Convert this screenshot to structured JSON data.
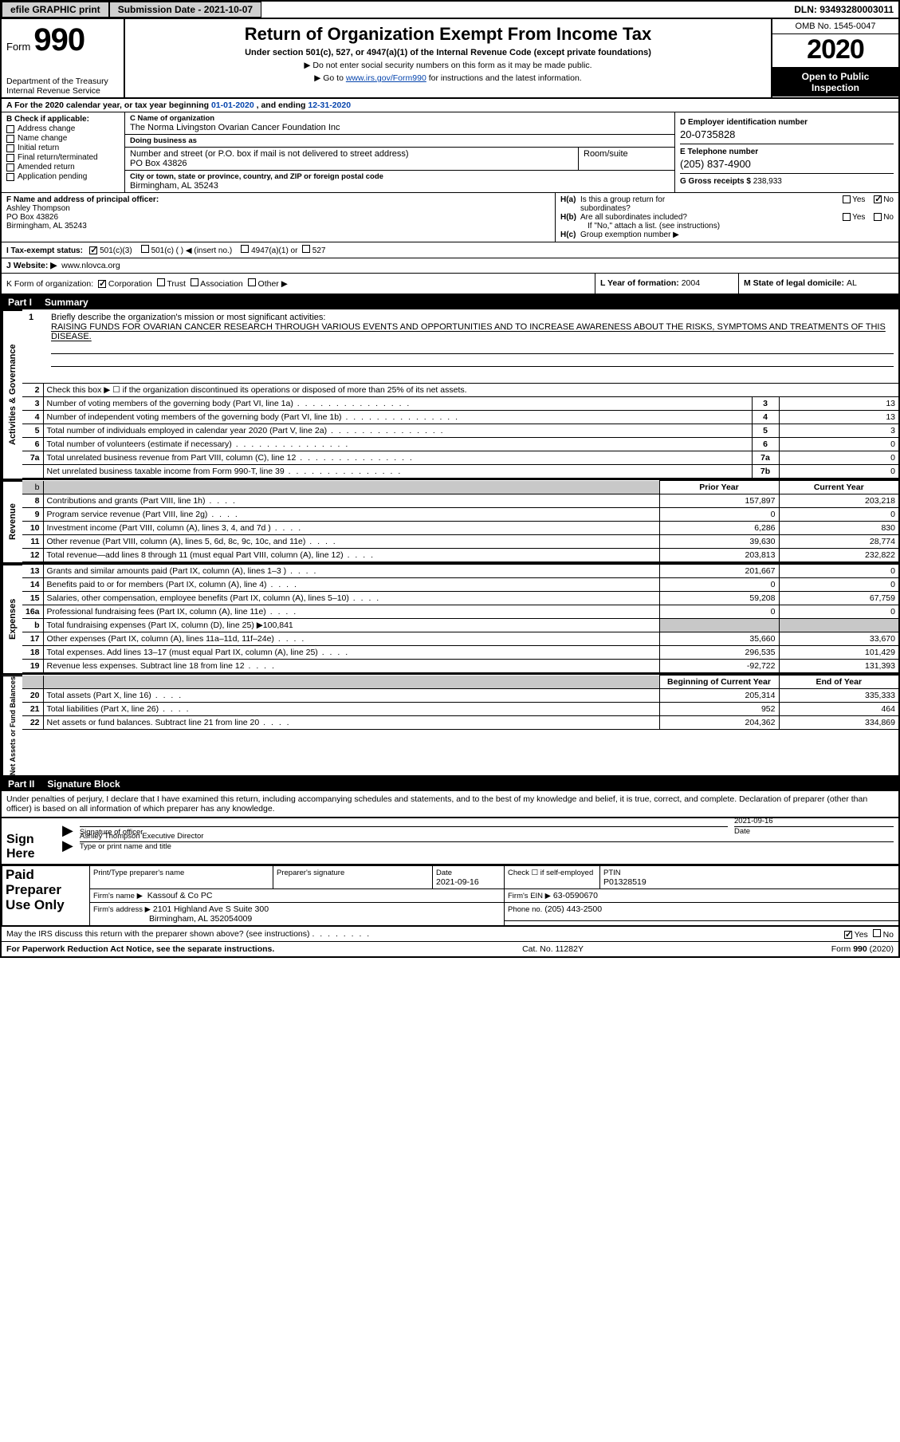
{
  "colors": {
    "ink": "#000000",
    "bg": "#ffffff",
    "link": "#0645ad",
    "shade": "#c8c8c8",
    "btn_bg": "#d0d0d0"
  },
  "topbar": {
    "efile": "efile GRAPHIC print",
    "submission_label": "Submission Date - 2021-10-07",
    "dln": "DLN: 93493280003011"
  },
  "header": {
    "form_word": "Form",
    "form_num": "990",
    "dept": "Department of the Treasury\nInternal Revenue Service",
    "title": "Return of Organization Exempt From Income Tax",
    "subtitle": "Under section 501(c), 527, or 4947(a)(1) of the Internal Revenue Code (except private foundations)",
    "note1": "▶ Do not enter social security numbers on this form as it may be made public.",
    "note2_pre": "▶ Go to ",
    "note2_link": "www.irs.gov/Form990",
    "note2_post": " for instructions and the latest information.",
    "omb": "OMB No. 1545-0047",
    "year": "2020",
    "open1": "Open to Public",
    "open2": "Inspection"
  },
  "line_a": {
    "text_pre": "A For the 2020 calendar year, or tax year beginning ",
    "begin": "01-01-2020",
    "mid": "   , and ending ",
    "end": "12-31-2020"
  },
  "col_b": {
    "header": "B Check if applicable:",
    "items": [
      "Address change",
      "Name change",
      "Initial return",
      "Final return/terminated",
      "Amended return",
      "Application pending"
    ]
  },
  "col_c": {
    "name_lbl": "C Name of organization",
    "name": "The Norma Livingston Ovarian Cancer Foundation Inc",
    "dba_lbl": "Doing business as",
    "dba": "",
    "addr_lbl": "Number and street (or P.O. box if mail is not delivered to street address)",
    "room_lbl": "Room/suite",
    "addr": "PO Box 43826",
    "city_lbl": "City or town, state or province, country, and ZIP or foreign postal code",
    "city": "Birmingham, AL  35243"
  },
  "col_d": {
    "d_lbl": "D Employer identification number",
    "d_val": "20-0735828",
    "e_lbl": "E Telephone number",
    "e_val": "(205) 837-4900",
    "g_lbl": "G Gross receipts $ ",
    "g_val": "238,933"
  },
  "f": {
    "lbl": "F  Name and address of principal officer:",
    "name": "Ashley Thompson",
    "addr1": "PO Box 43826",
    "addr2": "Birmingham, AL  35243"
  },
  "h": {
    "a_lbl": "H(a)  Is this a group return for subordinates?",
    "b_lbl": "H(b)  Are all subordinates included?",
    "b_note": "If \"No,\" attach a list. (see instructions)",
    "c_lbl": "H(c)  Group exemption number ▶"
  },
  "i": {
    "lbl": "I  Tax-exempt status:",
    "opts": [
      "501(c)(3)",
      "501(c) (   ) ◀ (insert no.)",
      "4947(a)(1) or",
      "527"
    ]
  },
  "j": {
    "lbl": "J  Website: ▶",
    "val": "www.nlovca.org"
  },
  "k": {
    "lbl": "K Form of organization:",
    "opts": [
      "Corporation",
      "Trust",
      "Association",
      "Other ▶"
    ]
  },
  "l": {
    "lbl": "L Year of formation: ",
    "val": "2004"
  },
  "m": {
    "lbl": "M State of legal domicile: ",
    "val": "AL"
  },
  "part1": {
    "num": "Part I",
    "title": "Summary"
  },
  "summary": {
    "side_labels": [
      "Activities & Governance",
      "Revenue",
      "Expenses",
      "Net Assets or Fund Balances"
    ],
    "q1_num": "1",
    "q1_text": "Briefly describe the organization's mission or most significant activities:",
    "mission": "RAISING FUNDS FOR OVARIAN CANCER RESEARCH THROUGH VARIOUS EVENTS AND OPPORTUNITIES AND TO INCREASE AWARENESS ABOUT THE RISKS, SYMPTOMS AND TREATMENTS OF THIS DISEASE.",
    "q2_text": "Check this box ▶ ☐  if the organization discontinued its operations or disposed of more than 25% of its net assets.",
    "lines_ag": [
      {
        "n": "3",
        "desc": "Number of voting members of the governing body (Part VI, line 1a)",
        "box": "3",
        "val": "13"
      },
      {
        "n": "4",
        "desc": "Number of independent voting members of the governing body (Part VI, line 1b)",
        "box": "4",
        "val": "13"
      },
      {
        "n": "5",
        "desc": "Total number of individuals employed in calendar year 2020 (Part V, line 2a)",
        "box": "5",
        "val": "3"
      },
      {
        "n": "6",
        "desc": "Total number of volunteers (estimate if necessary)",
        "box": "6",
        "val": "0"
      },
      {
        "n": "7a",
        "desc": "Total unrelated business revenue from Part VIII, column (C), line 12",
        "box": "7a",
        "val": "0"
      },
      {
        "n": "",
        "desc": "Net unrelated business taxable income from Form 990-T, line 39",
        "box": "7b",
        "val": "0"
      }
    ],
    "col_hdrs": {
      "prior": "Prior Year",
      "current": "Current Year"
    },
    "rev_rows": [
      {
        "n": "8",
        "desc": "Contributions and grants (Part VIII, line 1h)",
        "py": "157,897",
        "cy": "203,218"
      },
      {
        "n": "9",
        "desc": "Program service revenue (Part VIII, line 2g)",
        "py": "0",
        "cy": "0"
      },
      {
        "n": "10",
        "desc": "Investment income (Part VIII, column (A), lines 3, 4, and 7d )",
        "py": "6,286",
        "cy": "830"
      },
      {
        "n": "11",
        "desc": "Other revenue (Part VIII, column (A), lines 5, 6d, 8c, 9c, 10c, and 11e)",
        "py": "39,630",
        "cy": "28,774"
      },
      {
        "n": "12",
        "desc": "Total revenue—add lines 8 through 11 (must equal Part VIII, column (A), line 12)",
        "py": "203,813",
        "cy": "232,822"
      }
    ],
    "exp_rows": [
      {
        "n": "13",
        "desc": "Grants and similar amounts paid (Part IX, column (A), lines 1–3 )",
        "py": "201,667",
        "cy": "0"
      },
      {
        "n": "14",
        "desc": "Benefits paid to or for members (Part IX, column (A), line 4)",
        "py": "0",
        "cy": "0"
      },
      {
        "n": "15",
        "desc": "Salaries, other compensation, employee benefits (Part IX, column (A), lines 5–10)",
        "py": "59,208",
        "cy": "67,759"
      },
      {
        "n": "16a",
        "desc": "Professional fundraising fees (Part IX, column (A), line 11e)",
        "py": "0",
        "cy": "0"
      },
      {
        "n": "b",
        "desc": "Total fundraising expenses (Part IX, column (D), line 25) ▶100,841",
        "py": "",
        "cy": "",
        "shaded": true
      },
      {
        "n": "17",
        "desc": "Other expenses (Part IX, column (A), lines 11a–11d, 11f–24e)",
        "py": "35,660",
        "cy": "33,670"
      },
      {
        "n": "18",
        "desc": "Total expenses. Add lines 13–17 (must equal Part IX, column (A), line 25)",
        "py": "296,535",
        "cy": "101,429"
      },
      {
        "n": "19",
        "desc": "Revenue less expenses. Subtract line 18 from line 12",
        "py": "-92,722",
        "cy": "131,393"
      }
    ],
    "na_hdrs": {
      "begin": "Beginning of Current Year",
      "end": "End of Year"
    },
    "na_rows": [
      {
        "n": "20",
        "desc": "Total assets (Part X, line 16)",
        "py": "205,314",
        "cy": "335,333"
      },
      {
        "n": "21",
        "desc": "Total liabilities (Part X, line 26)",
        "py": "952",
        "cy": "464"
      },
      {
        "n": "22",
        "desc": "Net assets or fund balances. Subtract line 21 from line 20",
        "py": "204,362",
        "cy": "334,869"
      }
    ]
  },
  "part2": {
    "num": "Part II",
    "title": "Signature Block"
  },
  "perjury": "Under penalties of perjury, I declare that I have examined this return, including accompanying schedules and statements, and to the best of my knowledge and belief, it is true, correct, and complete. Declaration of preparer (other than officer) is based on all information of which preparer has any knowledge.",
  "sign": {
    "label": "Sign Here",
    "sig_lbl": "Signature of officer",
    "date_lbl": "Date",
    "date_val": "2021-09-16",
    "printed_lbl": "Type or print name and title",
    "printed_val": "Ashley Thompson  Executive Director"
  },
  "prep": {
    "label": "Paid Preparer Use Only",
    "cols": {
      "name_lbl": "Print/Type preparer's name",
      "sig_lbl": "Preparer's signature",
      "date_lbl": "Date",
      "date_val": "2021-09-16",
      "se_lbl": "Check ☐ if self-employed",
      "ptin_lbl": "PTIN",
      "ptin_val": "P01328519"
    },
    "firm_name_lbl": "Firm's name    ▶",
    "firm_name": "Kassouf & Co PC",
    "firm_ein_lbl": "Firm's EIN ▶",
    "firm_ein": "63-0590670",
    "firm_addr_lbl": "Firm's address ▶",
    "firm_addr1": "2101 Highland Ave S Suite 300",
    "firm_addr2": "Birmingham, AL  352054009",
    "phone_lbl": "Phone no.",
    "phone": "(205) 443-2500"
  },
  "discuss": {
    "q": "May the IRS discuss this return with the preparer shown above? (see instructions)",
    "yes": "Yes",
    "no": "No"
  },
  "footer": {
    "left": "For Paperwork Reduction Act Notice, see the separate instructions.",
    "mid": "Cat. No. 11282Y",
    "right_pre": "Form ",
    "right_num": "990",
    "right_post": " (2020)"
  }
}
